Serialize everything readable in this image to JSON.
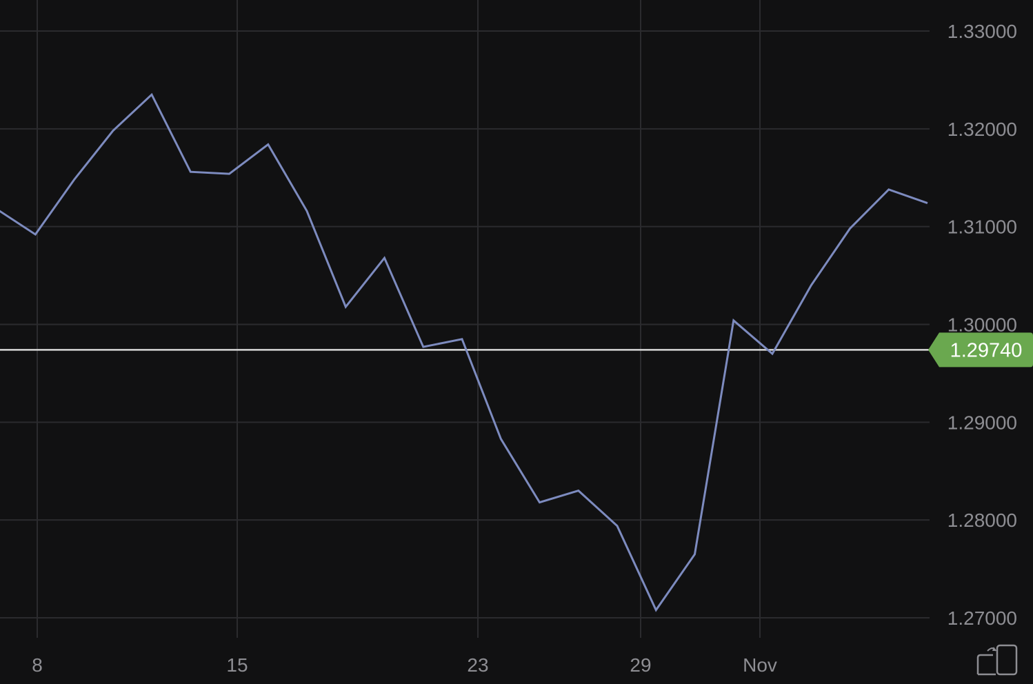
{
  "chart_data": {
    "type": "line",
    "x_labels": [
      "8",
      "15",
      "23",
      "29",
      "Nov"
    ],
    "y_ticks": [
      "1.33000",
      "1.32000",
      "1.31000",
      "1.30000",
      "1.29000",
      "1.28000",
      "1.27000"
    ],
    "ylim": [
      1.27,
      1.33
    ],
    "grid": true,
    "series": [
      {
        "color": "#7d8bbf",
        "values": [
          1.3118,
          1.3092,
          1.3148,
          1.3198,
          1.3235,
          1.3156,
          1.3154,
          1.3184,
          1.3116,
          1.3018,
          1.3068,
          1.2977,
          1.2985,
          1.2883,
          1.2818,
          1.283,
          1.2794,
          1.2708,
          1.2765,
          1.3004,
          1.297,
          1.304,
          1.3098,
          1.3138,
          1.3124
        ]
      }
    ],
    "current_price": {
      "value": 1.2974,
      "label": "1.29740",
      "color": "#6aa84f"
    }
  },
  "controls": {
    "rotate_icon": "rotate-screen-icon"
  }
}
